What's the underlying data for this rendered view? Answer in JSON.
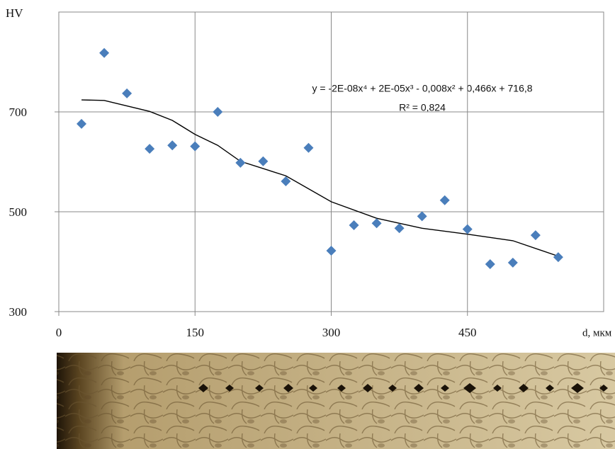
{
  "chart_data": {
    "type": "scatter",
    "y_label": "HV",
    "x_label": "d, мкм",
    "annotations": [
      "y = -2E-08x⁴ + 2E-05x³ - 0,008x² + 0,466x + 716,8",
      "R² = 0,824"
    ],
    "x": [
      25,
      50,
      75,
      100,
      125,
      150,
      175,
      200,
      225,
      250,
      275,
      300,
      325,
      350,
      375,
      400,
      425,
      450,
      475,
      500,
      525,
      550
    ],
    "values": [
      676,
      818,
      737,
      626,
      633,
      631,
      700,
      598,
      601,
      561,
      628,
      422,
      473,
      477,
      467,
      491,
      523,
      465,
      395,
      398,
      453,
      409
    ],
    "color": "#4a7ebb",
    "trendline": {
      "color": "#000000",
      "x": [
        25,
        50,
        100,
        125,
        150,
        175,
        200,
        250,
        300,
        350,
        400,
        450,
        500,
        550
      ],
      "values": [
        724,
        723,
        701,
        683,
        655,
        633,
        601,
        572,
        520,
        487,
        467,
        455,
        442,
        411
      ]
    },
    "xlim": [
      0,
      600
    ],
    "xticks": [
      0,
      150,
      300,
      450
    ],
    "ylim": [
      300,
      900
    ],
    "yticks": [
      300,
      500,
      700
    ],
    "grid": true
  }
}
